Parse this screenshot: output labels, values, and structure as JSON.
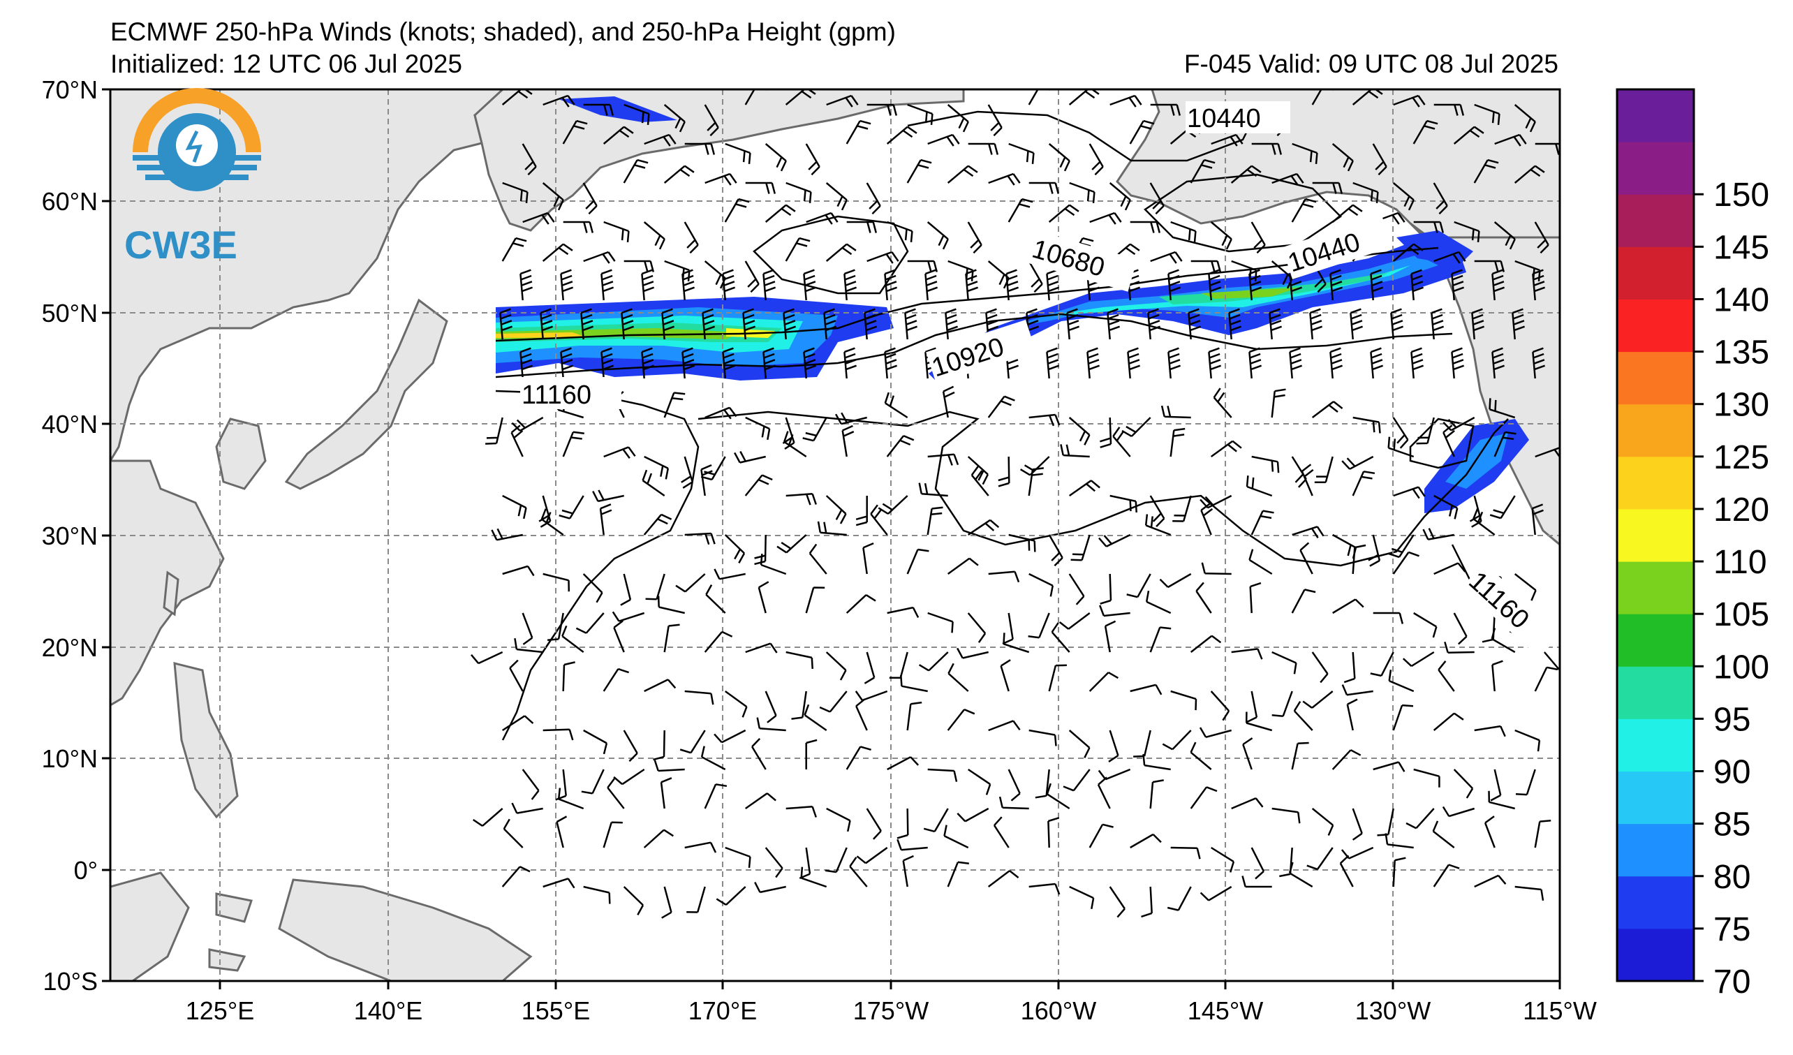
{
  "header": {
    "title": "ECMWF 250-hPa Winds (knots; shaded), and 250-hPa Height (gpm)",
    "initialized": "Initialized: 12 UTC 06 Jul 2025",
    "valid": "F-045  Valid: 09 UTC 08 Jul 2025"
  },
  "logo": {
    "text": "CW3E"
  },
  "map": {
    "lat_labels": [
      "70°N",
      "60°N",
      "50°N",
      "40°N",
      "30°N",
      "20°N",
      "10°N",
      "0°",
      "10°S"
    ],
    "lon_labels": [
      "125°E",
      "140°E",
      "155°E",
      "170°E",
      "175°W",
      "160°W",
      "145°W",
      "130°W",
      "115°W"
    ],
    "contour_labels": [
      "10440",
      "10440",
      "10680",
      "10920",
      "11160",
      "11160"
    ]
  },
  "colorbar": {
    "labels": [
      "70",
      "75",
      "80",
      "85",
      "90",
      "95",
      "100",
      "105",
      "110",
      "120",
      "125",
      "130",
      "135",
      "140",
      "145",
      "150"
    ],
    "colors": [
      "#1c1cd6",
      "#1f3cf0",
      "#1e90ff",
      "#26c8f5",
      "#20f0e6",
      "#22dca0",
      "#22be28",
      "#7ad21e",
      "#f8f820",
      "#fcd21c",
      "#faa61c",
      "#fa7620",
      "#fa2222",
      "#d2202e",
      "#a81e5a",
      "#8a1e86",
      "#6a1e9a"
    ]
  }
}
